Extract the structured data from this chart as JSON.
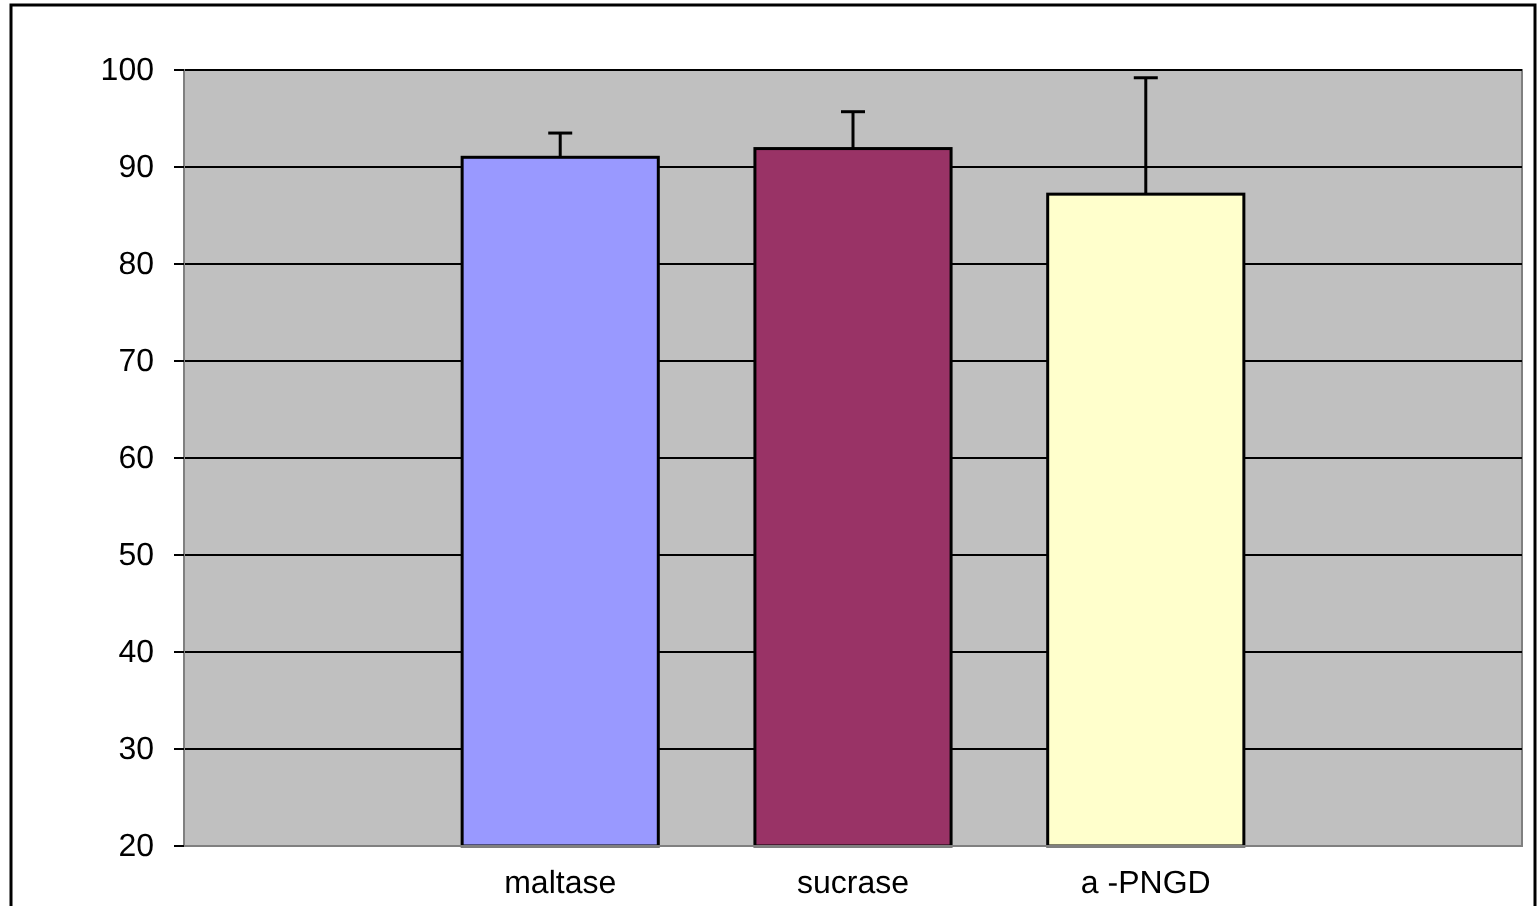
{
  "chart_data": {
    "type": "bar",
    "categories": [
      "maltase",
      "sucrase",
      "a -PNGD"
    ],
    "values": [
      91.0,
      91.9,
      87.2
    ],
    "colors": [
      "#9999ff",
      "#993366",
      "#ffffcc"
    ],
    "errors": [
      2.5,
      3.8,
      12
    ],
    "ylim": [
      20,
      100
    ],
    "yticks": [
      20,
      30,
      40,
      50,
      60,
      70,
      80,
      90,
      100
    ],
    "grid": "y"
  }
}
